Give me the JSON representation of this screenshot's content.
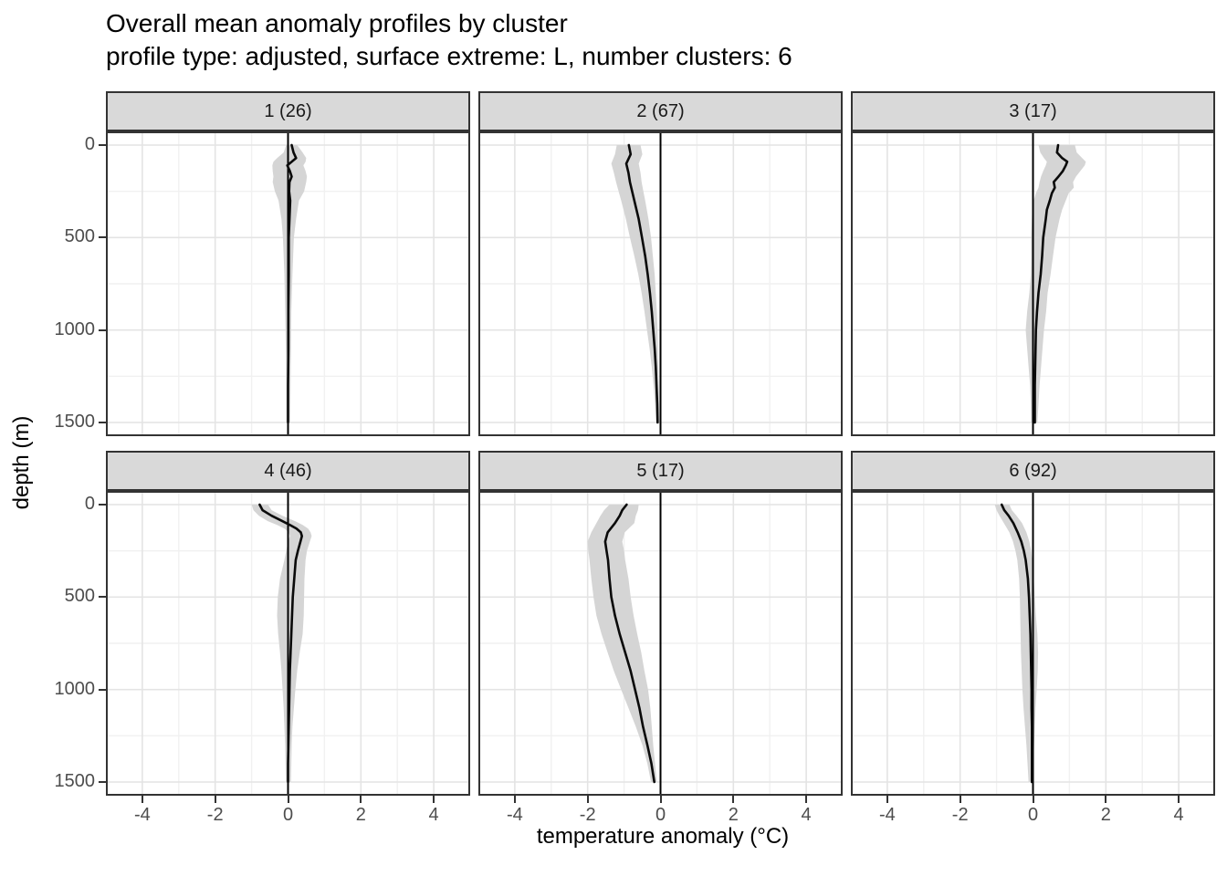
{
  "chart_data": {
    "type": "line",
    "title": "Overall mean anomaly profiles by cluster",
    "subtitle": "profile type: adjusted, surface extreme: L, number clusters: 6",
    "xlabel": "temperature anomaly (°C)",
    "ylabel": "depth (m)",
    "x_ticks": [
      -4,
      -2,
      0,
      2,
      4
    ],
    "y_ticks": [
      0,
      500,
      1000,
      1500
    ],
    "x_range": [
      -5,
      5
    ],
    "y_range": [
      0,
      1500
    ],
    "y_reversed": true,
    "grid": "major-and-minor",
    "legend": "none",
    "reference_line_x": 0,
    "facets": [
      {
        "label": "1 (26)",
        "depths": [
          0,
          40,
          70,
          90,
          110,
          140,
          170,
          200,
          250,
          300,
          400,
          500,
          700,
          900,
          1100,
          1300,
          1500
        ],
        "mean": [
          0.1,
          0.15,
          0.22,
          0.1,
          -0.02,
          0.05,
          0.1,
          0.04,
          0.03,
          0.06,
          0.04,
          0.02,
          0.02,
          0.01,
          0.01,
          0.0,
          0.0
        ],
        "lo": [
          -0.05,
          -0.12,
          -0.3,
          -0.4,
          -0.43,
          -0.42,
          -0.4,
          -0.42,
          -0.36,
          -0.26,
          -0.18,
          -0.14,
          -0.1,
          -0.08,
          -0.06,
          -0.05,
          -0.05
        ],
        "hi": [
          0.25,
          0.4,
          0.5,
          0.48,
          0.42,
          0.48,
          0.52,
          0.5,
          0.44,
          0.3,
          0.22,
          0.16,
          0.12,
          0.09,
          0.08,
          0.07,
          0.06
        ]
      },
      {
        "label": "2 (67)",
        "depths": [
          0,
          50,
          100,
          150,
          200,
          250,
          300,
          400,
          500,
          600,
          700,
          800,
          900,
          1000,
          1100,
          1200,
          1300,
          1400,
          1500
        ],
        "mean": [
          -0.87,
          -0.82,
          -0.94,
          -0.88,
          -0.84,
          -0.78,
          -0.72,
          -0.6,
          -0.51,
          -0.42,
          -0.35,
          -0.29,
          -0.24,
          -0.2,
          -0.16,
          -0.13,
          -0.11,
          -0.09,
          -0.08
        ],
        "lo": [
          -1.2,
          -1.25,
          -1.35,
          -1.28,
          -1.22,
          -1.15,
          -1.08,
          -0.95,
          -0.84,
          -0.72,
          -0.61,
          -0.52,
          -0.44,
          -0.37,
          -0.3,
          -0.24,
          -0.19,
          -0.15,
          -0.12
        ],
        "hi": [
          -0.55,
          -0.5,
          -0.6,
          -0.55,
          -0.52,
          -0.47,
          -0.42,
          -0.33,
          -0.26,
          -0.21,
          -0.16,
          -0.13,
          -0.1,
          -0.08,
          -0.07,
          -0.06,
          -0.05,
          -0.04,
          -0.03
        ]
      },
      {
        "label": "3 (17)",
        "depths": [
          0,
          40,
          70,
          90,
          110,
          140,
          170,
          200,
          230,
          260,
          300,
          350,
          400,
          500,
          600,
          700,
          800,
          900,
          1000,
          1100,
          1200,
          1300,
          1400,
          1500
        ],
        "mean": [
          0.69,
          0.66,
          0.8,
          0.94,
          0.9,
          0.82,
          0.7,
          0.57,
          0.6,
          0.52,
          0.46,
          0.38,
          0.35,
          0.28,
          0.25,
          0.21,
          0.15,
          0.11,
          0.08,
          0.07,
          0.06,
          0.05,
          0.05,
          0.05
        ],
        "lo": [
          0.15,
          0.2,
          0.3,
          0.38,
          0.35,
          0.28,
          0.22,
          0.18,
          0.15,
          0.08,
          0.02,
          -0.02,
          -0.03,
          -0.05,
          -0.05,
          -0.06,
          -0.1,
          -0.16,
          -0.2,
          -0.16,
          -0.12,
          -0.08,
          -0.06,
          -0.05
        ],
        "hi": [
          1.15,
          1.2,
          1.35,
          1.45,
          1.42,
          1.3,
          1.18,
          1.1,
          1.12,
          0.98,
          0.9,
          0.8,
          0.73,
          0.62,
          0.55,
          0.48,
          0.4,
          0.36,
          0.3,
          0.26,
          0.22,
          0.18,
          0.15,
          0.12
        ]
      },
      {
        "label": "4 (46)",
        "depths": [
          0,
          30,
          60,
          90,
          110,
          130,
          150,
          170,
          200,
          250,
          300,
          400,
          500,
          600,
          700,
          800,
          900,
          1000,
          1100,
          1200,
          1300,
          1400,
          1500
        ],
        "mean": [
          -0.78,
          -0.7,
          -0.45,
          -0.15,
          0.05,
          0.23,
          0.35,
          0.38,
          0.34,
          0.27,
          0.21,
          0.17,
          0.13,
          0.11,
          0.09,
          0.07,
          0.05,
          0.04,
          0.03,
          0.02,
          0.01,
          0.0,
          0.0
        ],
        "lo": [
          -1.0,
          -0.95,
          -0.8,
          -0.55,
          -0.3,
          -0.1,
          0.02,
          0.05,
          0.0,
          -0.05,
          -0.1,
          -0.22,
          -0.28,
          -0.3,
          -0.27,
          -0.22,
          -0.18,
          -0.15,
          -0.12,
          -0.1,
          -0.08,
          -0.07,
          -0.06
        ],
        "hi": [
          -0.55,
          -0.45,
          -0.15,
          0.2,
          0.4,
          0.55,
          0.62,
          0.65,
          0.6,
          0.52,
          0.48,
          0.45,
          0.44,
          0.43,
          0.4,
          0.32,
          0.25,
          0.2,
          0.16,
          0.12,
          0.1,
          0.09,
          0.08
        ]
      },
      {
        "label": "5 (17)",
        "depths": [
          0,
          30,
          60,
          100,
          150,
          200,
          250,
          300,
          400,
          500,
          600,
          700,
          800,
          900,
          1000,
          1100,
          1200,
          1300,
          1400,
          1500
        ],
        "mean": [
          -0.93,
          -1.05,
          -1.12,
          -1.25,
          -1.45,
          -1.52,
          -1.48,
          -1.44,
          -1.4,
          -1.35,
          -1.25,
          -1.12,
          -0.97,
          -0.82,
          -0.7,
          -0.58,
          -0.48,
          -0.36,
          -0.25,
          -0.17
        ],
        "lo": [
          -1.4,
          -1.55,
          -1.65,
          -1.76,
          -1.9,
          -2.0,
          -1.98,
          -1.95,
          -1.9,
          -1.84,
          -1.76,
          -1.62,
          -1.45,
          -1.28,
          -1.08,
          -0.88,
          -0.68,
          -0.5,
          -0.36,
          -0.26
        ],
        "hi": [
          -0.6,
          -0.62,
          -0.68,
          -0.72,
          -0.98,
          -1.05,
          -1.0,
          -0.97,
          -0.88,
          -0.82,
          -0.74,
          -0.64,
          -0.53,
          -0.44,
          -0.34,
          -0.28,
          -0.24,
          -0.2,
          -0.15,
          -0.1
        ]
      },
      {
        "label": "6 (92)",
        "depths": [
          0,
          30,
          60,
          100,
          150,
          200,
          250,
          300,
          400,
          500,
          600,
          700,
          800,
          900,
          1000,
          1100,
          1200,
          1300,
          1400,
          1500
        ],
        "mean": [
          -0.86,
          -0.79,
          -0.67,
          -0.54,
          -0.42,
          -0.32,
          -0.25,
          -0.2,
          -0.14,
          -0.11,
          -0.09,
          -0.07,
          -0.06,
          -0.05,
          -0.04,
          -0.04,
          -0.03,
          -0.03,
          -0.03,
          -0.03
        ],
        "lo": [
          -1.05,
          -1.0,
          -0.92,
          -0.8,
          -0.65,
          -0.55,
          -0.48,
          -0.43,
          -0.38,
          -0.36,
          -0.35,
          -0.34,
          -0.33,
          -0.31,
          -0.29,
          -0.26,
          -0.22,
          -0.18,
          -0.15,
          -0.12
        ],
        "hi": [
          -0.65,
          -0.58,
          -0.45,
          -0.3,
          -0.18,
          -0.1,
          -0.05,
          -0.02,
          0.02,
          0.05,
          0.08,
          0.12,
          0.14,
          0.13,
          0.1,
          0.07,
          0.05,
          0.03,
          0.01,
          0.0
        ]
      }
    ]
  },
  "colors": {
    "background": "#ffffff",
    "strip_background": "#d9d9d9",
    "panel_border": "#333333",
    "grid_major": "#e4e4e4",
    "grid_minor": "#f1f1f1",
    "ribbon": "#d5d5d5",
    "mean_line": "#0a0a0a",
    "zero_line": "#000000",
    "tick_label": "#4d4d4d",
    "tick_mark": "#333333"
  }
}
